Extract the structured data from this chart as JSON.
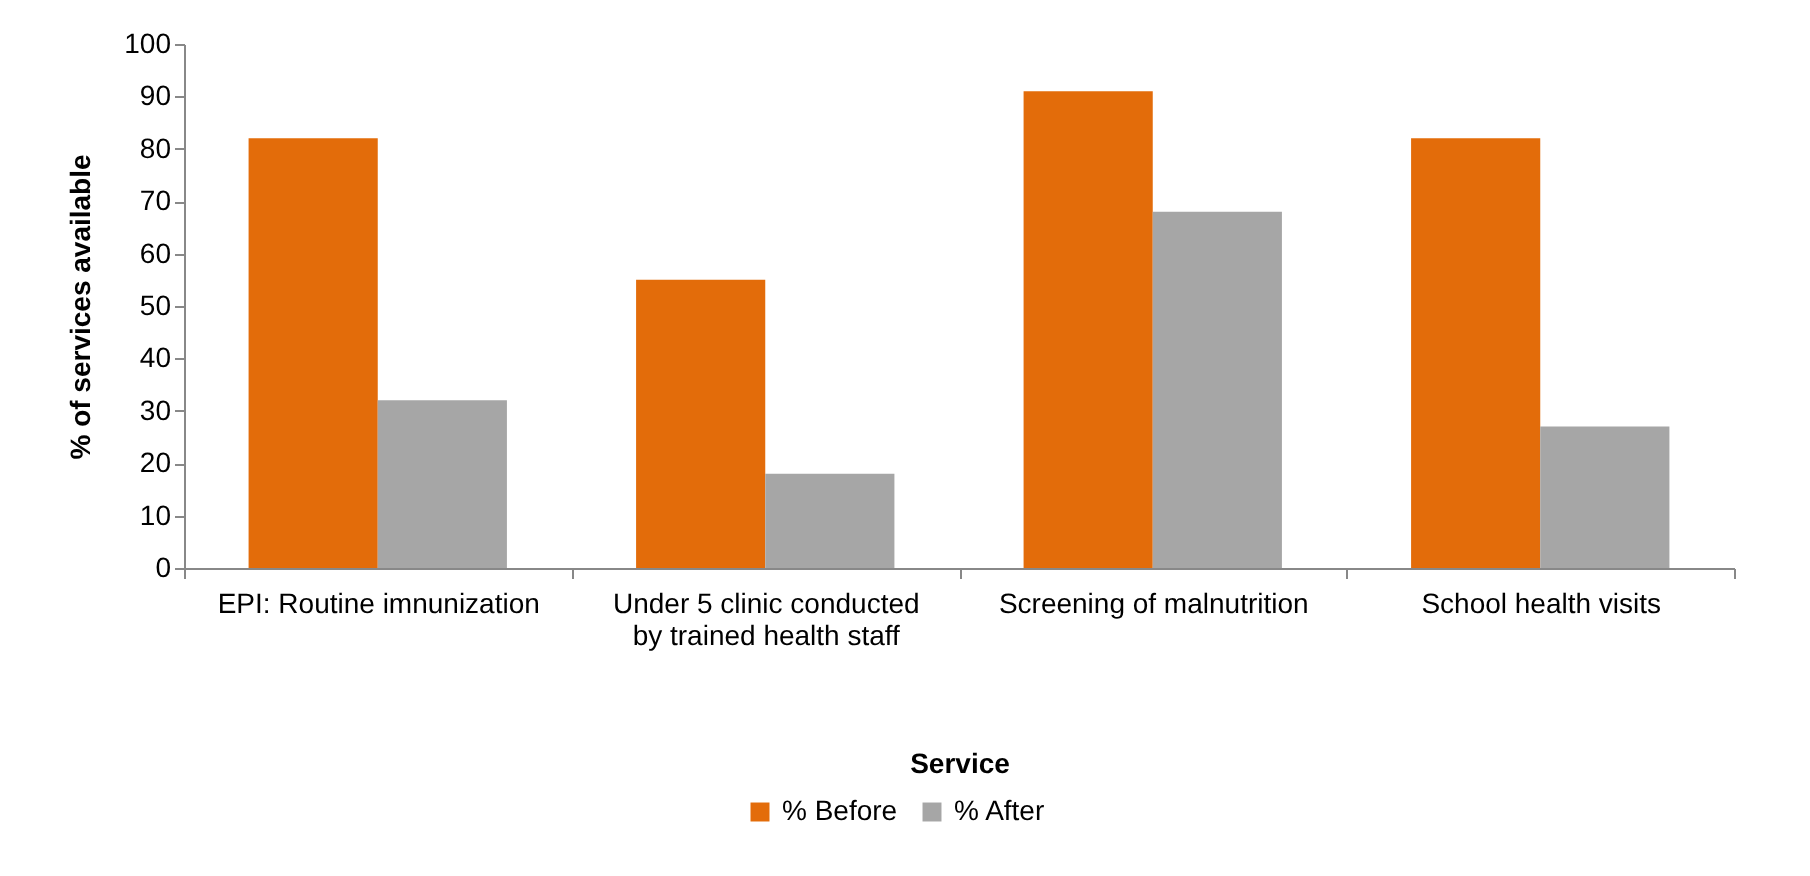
{
  "chart_data": {
    "type": "bar",
    "xlabel": "Service",
    "ylabel": "% of services available",
    "categories": [
      "EPI: Routine imnunization",
      "Under 5 clinic conducted by trained health staff",
      "Screening of malnutrition",
      "School health visits"
    ],
    "series": [
      {
        "name": "% Before",
        "color": "#e36c0a",
        "values": [
          82,
          55,
          91,
          82
        ]
      },
      {
        "name": "% After",
        "color": "#a6a6a6",
        "values": [
          32,
          18,
          68,
          27
        ]
      }
    ],
    "ylim": [
      0,
      100
    ],
    "yticks": [
      0,
      10,
      20,
      30,
      40,
      50,
      60,
      70,
      80,
      90,
      100
    ],
    "grid": false,
    "legend": "bottom"
  }
}
